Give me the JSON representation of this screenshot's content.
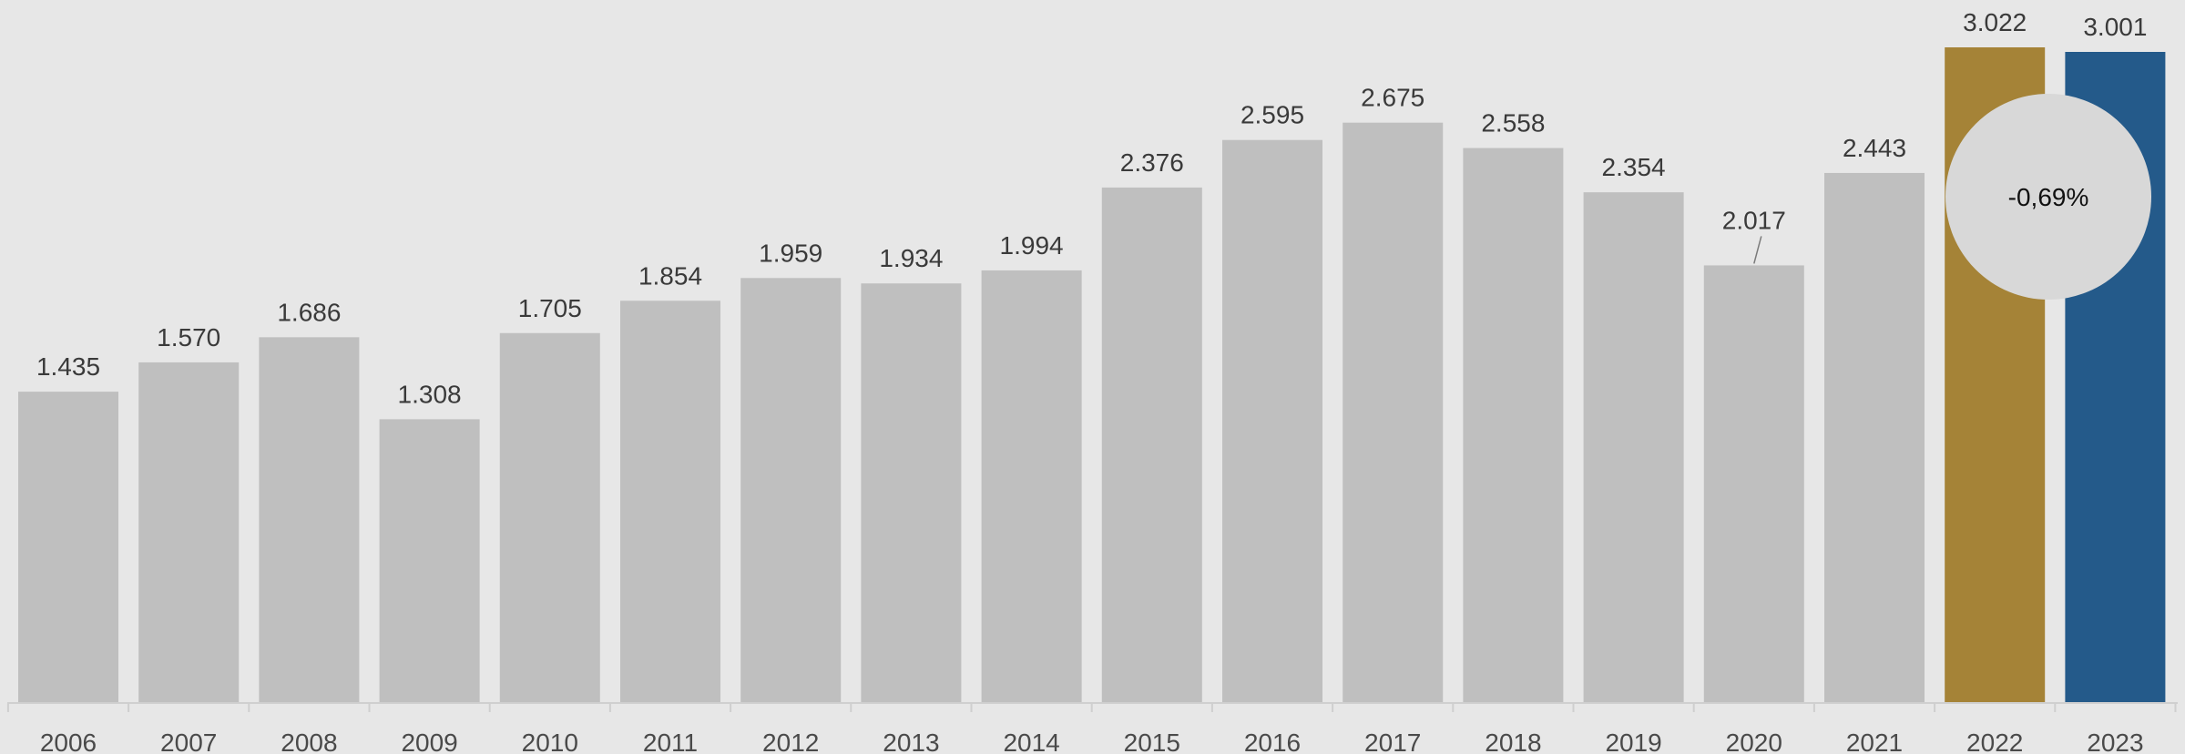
{
  "chart_data": {
    "type": "bar",
    "categories": [
      "2006",
      "2007",
      "2008",
      "2009",
      "2010",
      "2011",
      "2012",
      "2013",
      "2014",
      "2015",
      "2016",
      "2017",
      "2018",
      "2019",
      "2020",
      "2021",
      "2022",
      "2023"
    ],
    "values": [
      1435,
      1570,
      1686,
      1308,
      1705,
      1854,
      1959,
      1934,
      1994,
      2376,
      2595,
      2675,
      2558,
      2354,
      2017,
      2443,
      3022,
      3001
    ],
    "value_labels": [
      "1.435",
      "1.570",
      "1.686",
      "1.308",
      "1.705",
      "1.854",
      "1.959",
      "1.934",
      "1.994",
      "2.376",
      "2.595",
      "2.675",
      "2.558",
      "2.354",
      "2.017",
      "2.443",
      "3.022",
      "3.001"
    ],
    "ylim": [
      0,
      3022
    ],
    "grid": false,
    "legend": "none",
    "colors": {
      "default": "#bfbfbf",
      "2022": "#a58337",
      "2023": "#245a8a",
      "background": "#e7e7e7",
      "callout": "#d8d8d8"
    },
    "annotation": {
      "text": "-0,69%",
      "shape": "circle"
    }
  }
}
